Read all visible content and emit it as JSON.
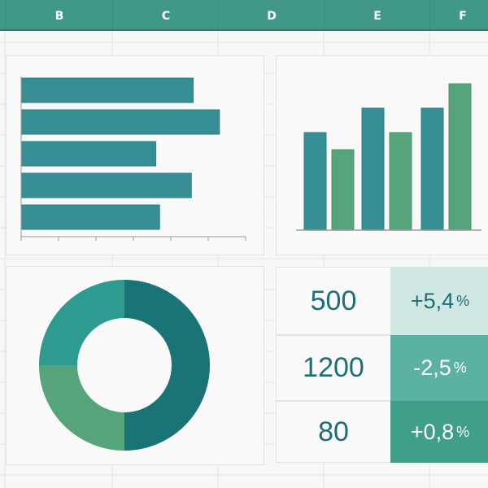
{
  "columns": [
    "B",
    "C",
    "D",
    "E",
    "F"
  ],
  "colors": {
    "header": "#419888",
    "teal": "#378f95",
    "green": "#55a47b",
    "dark_teal": "#1a7374",
    "mid_teal": "#2f9a8f",
    "kpi_text": "#1c6e73"
  },
  "chart_data": [
    {
      "type": "bar",
      "orientation": "horizontal",
      "values": [
        4.6,
        5.3,
        3.6,
        4.55,
        3.7
      ],
      "xlim": [
        0,
        6
      ],
      "color": "#378f95"
    },
    {
      "type": "bar",
      "orientation": "vertical",
      "values": [
        4.0,
        3.3,
        5.0,
        4.0,
        5.0,
        6.0
      ],
      "colors": [
        "#378f95",
        "#55a47b",
        "#378f95",
        "#55a47b",
        "#378f95",
        "#55a47b"
      ],
      "ylim": [
        0,
        6.5
      ]
    },
    {
      "type": "pie",
      "donut": true,
      "values": [
        50,
        25,
        25
      ],
      "colors": [
        "#1a7374",
        "#55a47b",
        "#2f9a8f"
      ]
    }
  ],
  "kpis": [
    {
      "value": "500",
      "change": "+5,4",
      "unit": "%",
      "bg": "#cfe8e3",
      "fg": "#1c6e73"
    },
    {
      "value": "1200",
      "change": "-2,5",
      "unit": "%",
      "bg": "#5bb1a2",
      "fg": "#ffffff"
    },
    {
      "value": "80",
      "change": "+0,8",
      "unit": "%",
      "bg": "#3f9f88",
      "fg": "#ffffff"
    }
  ]
}
